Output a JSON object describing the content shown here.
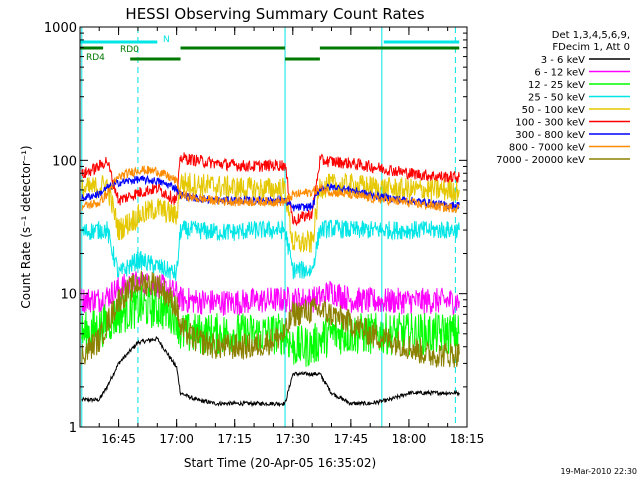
{
  "chart_data": {
    "type": "line",
    "title": "HESSI Observing Summary Count Rates",
    "xlabel": "Start Time (20-Apr-05 16:35:02)",
    "ylabel": "Count Rate (s⁻¹ detector⁻¹)",
    "ylim": [
      1,
      1000
    ],
    "yscale": "log",
    "xlim": [
      "16:35:02",
      "18:15:00"
    ],
    "x_tick_labels": [
      "16:45",
      "17:00",
      "17:15",
      "17:30",
      "17:45",
      "18:00",
      "18:15"
    ],
    "y_tick_labels": [
      "1",
      "10",
      "100",
      "1000"
    ],
    "grid": false,
    "legend_position": "right",
    "legend_header": [
      "Det 1,3,4,5,6,9,",
      "FDecim 1, Att 0"
    ],
    "timestamp": "19-Mar-2010 22:30",
    "flag_labels": {
      "n": "N",
      "rd0": "RD0",
      "rd4": "RD4"
    },
    "night_times": [
      "16:35:30",
      "17:28:00",
      "17:53:00"
    ],
    "saa_times": [
      "16:50:00",
      "18:12:00"
    ],
    "segments": [
      {
        "flag": "N",
        "color": "#00e5e5",
        "spans": [
          [
            "16:35:02",
            "16:55:00"
          ],
          [
            "17:53:30",
            "18:13:00"
          ]
        ]
      },
      {
        "flag": "RD0",
        "color": "#007a00",
        "spans": [
          [
            "16:35:02",
            "16:41:00"
          ],
          [
            "17:01:00",
            "17:28:00"
          ],
          [
            "17:37:00",
            "18:13:00"
          ]
        ]
      },
      {
        "flag": "RD4",
        "color": "#007a00",
        "spans": [
          [
            "16:48:00",
            "17:01:00"
          ],
          [
            "17:28:00",
            "17:37:00"
          ]
        ]
      }
    ],
    "series": [
      {
        "name": "3 - 6 keV",
        "color": "#000000",
        "time": [
          "16:35:30",
          "16:40:00",
          "16:42:00",
          "16:45:00",
          "16:50:00",
          "16:55:00",
          "17:00:00",
          "17:01:00",
          "17:05:00",
          "17:10:00",
          "17:15:00",
          "17:20:00",
          "17:25:00",
          "17:28:00",
          "17:30:00",
          "17:35:00",
          "17:37:00",
          "17:40:00",
          "17:45:00",
          "17:50:00",
          "17:55:00",
          "18:00:00",
          "18:05:00",
          "18:10:00",
          "18:13:00"
        ],
        "values": [
          1.6,
          1.6,
          2.0,
          3.0,
          4.3,
          4.6,
          2.8,
          1.8,
          1.6,
          1.5,
          1.5,
          1.5,
          1.5,
          1.5,
          2.5,
          2.5,
          2.5,
          1.8,
          1.5,
          1.5,
          1.6,
          1.8,
          1.8,
          1.8,
          1.8
        ]
      },
      {
        "name": "6 - 12 keV",
        "color": "#ff00ff",
        "time": [
          "16:35:30",
          "16:40:00",
          "16:42:00",
          "16:45:00",
          "16:50:00",
          "16:55:00",
          "17:00:00",
          "17:01:00",
          "17:05:00",
          "17:10:00",
          "17:15:00",
          "17:20:00",
          "17:25:00",
          "17:28:00",
          "17:30:00",
          "17:35:00",
          "17:37:00",
          "17:40:00",
          "17:45:00",
          "17:50:00",
          "17:55:00",
          "18:00:00",
          "18:05:00",
          "18:10:00",
          "18:13:00"
        ],
        "values": [
          9.0,
          9.0,
          9.5,
          11,
          12,
          11.5,
          10,
          9.0,
          8.8,
          8.6,
          8.6,
          8.8,
          9.0,
          9.0,
          9.0,
          9.0,
          9.3,
          10.5,
          9.0,
          8.8,
          8.8,
          8.8,
          8.8,
          8.8,
          8.8
        ]
      },
      {
        "name": "12 - 25 keV",
        "color": "#00ff00",
        "time": [
          "16:35:30",
          "16:40:00",
          "16:42:00",
          "16:45:00",
          "16:50:00",
          "16:55:00",
          "17:00:00",
          "17:01:00",
          "17:05:00",
          "17:10:00",
          "17:15:00",
          "17:20:00",
          "17:25:00",
          "17:28:00",
          "17:30:00",
          "17:35:00",
          "17:37:00",
          "17:40:00",
          "17:45:00",
          "17:50:00",
          "17:55:00",
          "18:00:00",
          "18:05:00",
          "18:10:00",
          "18:13:00"
        ],
        "values": [
          5.0,
          5.5,
          6.0,
          7.0,
          8.0,
          7.8,
          7.0,
          5.0,
          5.0,
          5.0,
          5.0,
          5.0,
          5.0,
          5.0,
          4.0,
          4.0,
          4.5,
          5.0,
          5.0,
          5.0,
          5.0,
          5.0,
          5.0,
          5.0,
          5.0
        ]
      },
      {
        "name": "25 - 50 keV",
        "color": "#00e5e5",
        "time": [
          "16:35:30",
          "16:40:00",
          "16:42:00",
          "16:45:00",
          "16:50:00",
          "16:55:00",
          "17:00:00",
          "17:01:00",
          "17:05:00",
          "17:10:00",
          "17:15:00",
          "17:20:00",
          "17:25:00",
          "17:28:00",
          "17:30:00",
          "17:35:00",
          "17:37:00",
          "17:40:00",
          "17:45:00",
          "17:50:00",
          "17:55:00",
          "18:00:00",
          "18:05:00",
          "18:10:00",
          "18:13:00"
        ],
        "values": [
          29,
          30,
          30,
          14,
          18,
          16,
          14,
          30,
          30,
          29,
          29,
          30,
          30,
          30,
          15,
          15,
          30,
          31,
          30,
          30,
          30,
          30,
          30,
          30,
          30
        ]
      },
      {
        "name": "50 - 100 keV",
        "color": "#e5c800",
        "time": [
          "16:35:30",
          "16:40:00",
          "16:42:00",
          "16:45:00",
          "16:50:00",
          "16:55:00",
          "17:00:00",
          "17:01:00",
          "17:05:00",
          "17:10:00",
          "17:15:00",
          "17:20:00",
          "17:25:00",
          "17:28:00",
          "17:30:00",
          "17:35:00",
          "17:37:00",
          "17:40:00",
          "17:45:00",
          "17:50:00",
          "17:55:00",
          "18:00:00",
          "18:05:00",
          "18:10:00",
          "18:13:00"
        ],
        "values": [
          60,
          63,
          66,
          30,
          38,
          44,
          38,
          68,
          66,
          64,
          62,
          61,
          61,
          61,
          24,
          24,
          63,
          65,
          65,
          63,
          61,
          60,
          60,
          60,
          60
        ]
      },
      {
        "name": "100 - 300 keV",
        "color": "#ff0000",
        "time": [
          "16:35:30",
          "16:40:00",
          "16:42:00",
          "16:45:00",
          "16:50:00",
          "16:55:00",
          "17:00:00",
          "17:01:00",
          "17:05:00",
          "17:10:00",
          "17:15:00",
          "17:20:00",
          "17:25:00",
          "17:28:00",
          "17:30:00",
          "17:35:00",
          "17:37:00",
          "17:40:00",
          "17:45:00",
          "17:50:00",
          "17:55:00",
          "18:00:00",
          "18:05:00",
          "18:10:00",
          "18:13:00"
        ],
        "values": [
          78,
          90,
          100,
          50,
          57,
          62,
          50,
          105,
          100,
          95,
          92,
          90,
          92,
          92,
          35,
          40,
          100,
          98,
          95,
          90,
          85,
          80,
          77,
          75,
          75
        ]
      },
      {
        "name": "300 - 800 keV",
        "color": "#0000ff",
        "time": [
          "16:35:30",
          "16:40:00",
          "16:42:00",
          "16:45:00",
          "16:50:00",
          "16:55:00",
          "17:00:00",
          "17:01:00",
          "17:05:00",
          "17:10:00",
          "17:15:00",
          "17:20:00",
          "17:25:00",
          "17:28:00",
          "17:30:00",
          "17:35:00",
          "17:37:00",
          "17:40:00",
          "17:45:00",
          "17:50:00",
          "17:55:00",
          "18:00:00",
          "18:05:00",
          "18:10:00",
          "18:13:00"
        ],
        "values": [
          52,
          56,
          62,
          68,
          72,
          70,
          62,
          55,
          52,
          50,
          50,
          50,
          50,
          50,
          44,
          45,
          62,
          63,
          60,
          55,
          52,
          50,
          48,
          46,
          46
        ]
      },
      {
        "name": "800 - 7000 keV",
        "color": "#ff8c00",
        "time": [
          "16:35:30",
          "16:40:00",
          "16:42:00",
          "16:45:00",
          "16:50:00",
          "16:55:00",
          "17:00:00",
          "17:01:00",
          "17:05:00",
          "17:10:00",
          "17:15:00",
          "17:20:00",
          "17:25:00",
          "17:28:00",
          "17:30:00",
          "17:35:00",
          "17:37:00",
          "17:40:00",
          "17:45:00",
          "17:50:00",
          "17:55:00",
          "18:00:00",
          "18:05:00",
          "18:10:00",
          "18:13:00"
        ],
        "values": [
          45,
          48,
          56,
          75,
          85,
          83,
          70,
          55,
          52,
          50,
          49,
          49,
          49,
          49,
          55,
          58,
          62,
          58,
          55,
          52,
          50,
          48,
          46,
          44,
          44
        ]
      },
      {
        "name": "7000 - 20000 keV",
        "color": "#8b8000",
        "time": [
          "16:35:30",
          "16:40:00",
          "16:42:00",
          "16:45:00",
          "16:50:00",
          "16:55:00",
          "17:00:00",
          "17:01:00",
          "17:05:00",
          "17:10:00",
          "17:15:00",
          "17:20:00",
          "17:25:00",
          "17:28:00",
          "17:30:00",
          "17:35:00",
          "17:37:00",
          "17:40:00",
          "17:45:00",
          "17:50:00",
          "17:55:00",
          "18:00:00",
          "18:05:00",
          "18:10:00",
          "18:13:00"
        ],
        "values": [
          3.5,
          4.5,
          6.0,
          9.0,
          12,
          12,
          8.0,
          5.5,
          4.5,
          4.0,
          4.0,
          4.0,
          4.5,
          5.0,
          7.0,
          7.5,
          7.5,
          7.0,
          6.0,
          5.0,
          4.5,
          4.0,
          3.5,
          3.5,
          3.5
        ]
      }
    ]
  }
}
